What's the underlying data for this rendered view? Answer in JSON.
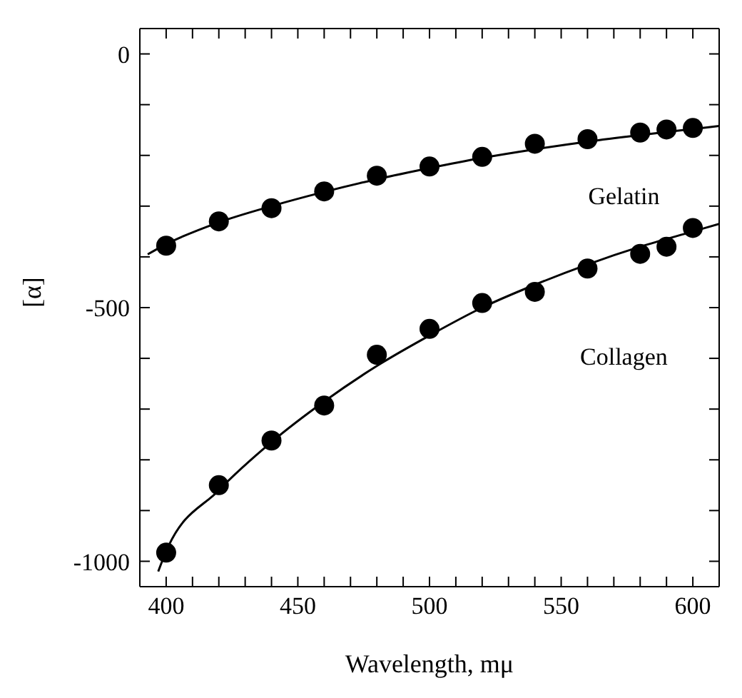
{
  "chart_data": {
    "type": "scatter",
    "xlabel": "Wavelength, mμ",
    "ylabel": "[α]",
    "marker": "circle",
    "grid": false,
    "legend": "right",
    "xlim": [
      390,
      610
    ],
    "ylim": [
      -1050,
      50
    ],
    "xticks": [
      400,
      {
        "value": 410,
        "label": null
      },
      {
        "value": 420,
        "label": null
      },
      {
        "value": 430,
        "label": null
      },
      {
        "value": 440,
        "label": null
      },
      450,
      {
        "value": 460,
        "label": null
      },
      {
        "value": 470,
        "label": null
      },
      {
        "value": 480,
        "label": null
      },
      {
        "value": 490,
        "label": null
      },
      500,
      {
        "value": 510,
        "label": null
      },
      {
        "value": 520,
        "label": null
      },
      {
        "value": 530,
        "label": null
      },
      {
        "value": 540,
        "label": null
      },
      550,
      {
        "value": 560,
        "label": null
      },
      {
        "value": 570,
        "label": null
      },
      {
        "value": 580,
        "label": null
      },
      {
        "value": 590,
        "label": null
      },
      600
    ],
    "yticks": [
      -1000,
      {
        "value": -900,
        "label": null
      },
      {
        "value": -800,
        "label": null
      },
      {
        "value": -700,
        "label": null
      },
      {
        "value": -600,
        "label": null
      },
      -500,
      {
        "value": -400,
        "label": null
      },
      {
        "value": -300,
        "label": null
      },
      {
        "value": -200,
        "label": null
      },
      {
        "value": -100,
        "label": null
      },
      0
    ],
    "series": [
      {
        "name": "Gelatin",
        "color": "#000000",
        "x": [
          400,
          420,
          440,
          460,
          480,
          500,
          520,
          540,
          560,
          580,
          590,
          600
        ],
        "values": [
          -378,
          -330,
          -304,
          -271,
          -240,
          -222,
          -203,
          -177,
          -168,
          -155,
          -149,
          -146
        ]
      },
      {
        "type": "line",
        "marker": "none",
        "color": "#000000",
        "x": [
          393,
          400,
          420,
          440,
          460,
          480,
          500,
          520,
          540,
          560,
          580,
          600,
          610
        ],
        "values": [
          -395,
          -375,
          -332,
          -300,
          -272,
          -247,
          -225,
          -205,
          -188,
          -173,
          -160,
          -148,
          -142
        ]
      },
      {
        "name": "Collagen",
        "color": "#000000",
        "x": [
          400,
          420,
          440,
          460,
          480,
          500,
          520,
          540,
          560,
          580,
          590,
          600
        ],
        "values": [
          -983,
          -850,
          -762,
          -693,
          -593,
          -542,
          -491,
          -469,
          -423,
          -394,
          -380,
          -343
        ]
      },
      {
        "type": "line",
        "marker": "none",
        "color": "#000000",
        "x": [
          397,
          400,
          420,
          440,
          460,
          480,
          500,
          520,
          540,
          560,
          580,
          600,
          610
        ],
        "values": [
          -1020,
          -980,
          -860,
          -765,
          -685,
          -615,
          -555,
          -500,
          -455,
          -415,
          -380,
          -350,
          -335
        ]
      }
    ]
  }
}
